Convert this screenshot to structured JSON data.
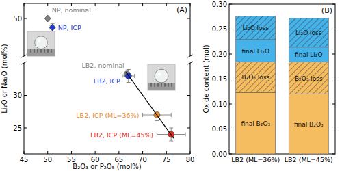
{
  "chart_data": [
    {
      "type": "scatter",
      "title": "(A)",
      "xlim": [
        45,
        80
      ],
      "xticks": [
        45,
        50,
        55,
        60,
        65,
        70,
        75,
        80
      ],
      "ylim": [
        45,
        52
      ],
      "yticks": [
        50
      ],
      "tick_labels": "y",
      "series": [
        {
          "name": "NP, nominal",
          "color": "#808080",
          "marker": "diamond",
          "x": [
            50
          ],
          "values": [
            50
          ]
        },
        {
          "name": "NP, ICP",
          "color": "#1f3bd0",
          "marker": "diamond",
          "x": [
            51
          ],
          "values": [
            48.8
          ],
          "x_error": [
            0.5
          ],
          "y_error": [
            0.5
          ]
        }
      ]
    },
    {
      "type": "scatter",
      "x_label": "B₂O₃ or P₂O₅ (mol%)",
      "y_label": "Li₂O or Na₂O (mol%)",
      "xlim": [
        45,
        80
      ],
      "xticks": [
        45,
        50,
        55,
        60,
        65,
        70,
        75,
        80
      ],
      "ylim": [
        21,
        35
      ],
      "yticks": [
        25,
        30
      ],
      "series": [
        {
          "name": "LB2, nominal",
          "color": "#808080",
          "marker": "circle",
          "x": [
            66.7
          ],
          "values": [
            33.3
          ]
        },
        {
          "name": "LB2, ICP",
          "color": "#1f3bd0",
          "marker": "circle",
          "x": [
            67
          ],
          "values": [
            33
          ],
          "x_error": [
            1.3
          ],
          "y_error": [
            1.0
          ]
        },
        {
          "name": "LB2, ICP (ML=36%)",
          "color": "#e88b2e",
          "marker": "circle",
          "x": [
            73
          ],
          "values": [
            27
          ],
          "x_error": [
            3.0
          ],
          "y_error": [
            0.9
          ]
        },
        {
          "name": "LB2, ICP (ML=45%)",
          "color": "#e02a1e",
          "marker": "circle",
          "x": [
            76
          ],
          "values": [
            24
          ],
          "x_error": [
            3.0
          ],
          "y_error": [
            1.0
          ]
        },
        {
          "type": "line",
          "color": "#000000",
          "line_style": "solid",
          "x": [
            66.5,
            76.5
          ],
          "values": [
            33.6,
            23.4
          ]
        }
      ]
    },
    {
      "type": "bar",
      "title": "(B)",
      "stacked": true,
      "y_label": "Oxide content (mol)",
      "categories": [
        "LB2 (ML=36%)",
        "LB2 (ML=45%)"
      ],
      "ylim": [
        0,
        0.3
      ],
      "yticks": [
        {
          "value": 0,
          "label": "0.00"
        },
        0.05,
        {
          "value": 0.1,
          "label": "0.10"
        },
        0.15,
        {
          "value": 0.2,
          "label": "0.20"
        },
        0.25,
        {
          "value": 0.3,
          "label": "0.30"
        }
      ],
      "series": [
        {
          "name": "final B₂O₃",
          "color": "#f6bd60",
          "line_style": "solid",
          "values": [
            0.123,
            0.12
          ]
        },
        {
          "name": "B₂O₃ loss",
          "color": "#f6bd60",
          "line_style": "hatched",
          "values": [
            0.061,
            0.064
          ]
        },
        {
          "name": "final Li₂O",
          "color": "#45b2ea",
          "line_style": "solid",
          "values": [
            0.045,
            0.03
          ]
        },
        {
          "name": "Li₂O loss",
          "color": "#45b2ea",
          "line_style": "hatched",
          "values": [
            0.047,
            0.058
          ]
        }
      ]
    }
  ]
}
